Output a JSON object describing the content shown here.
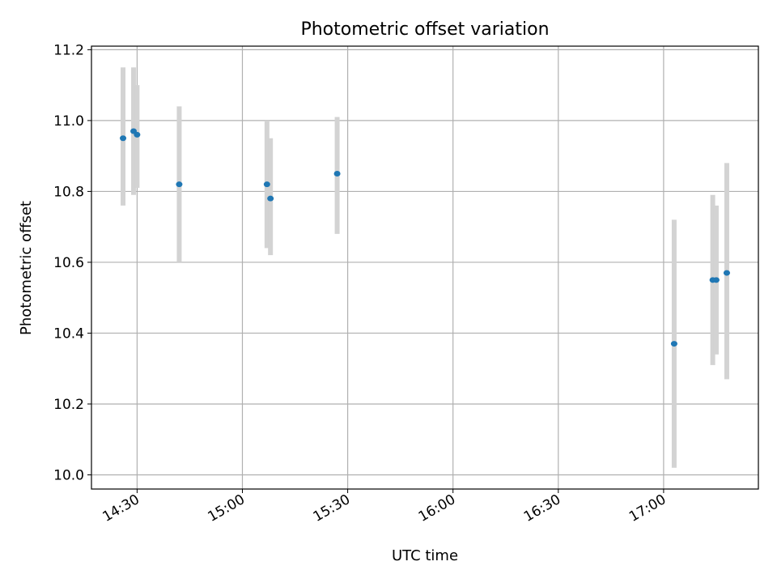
{
  "chart_data": {
    "type": "scatter",
    "title": "Photometric offset variation",
    "xlabel": "UTC time",
    "ylabel": "Photometric offset",
    "x_ticks": [
      "14:30",
      "15:00",
      "15:30",
      "16:00",
      "16:30",
      "17:00"
    ],
    "x_tick_values_min": [
      870,
      900,
      930,
      960,
      990,
      1020
    ],
    "xlim_min": [
      857,
      1047
    ],
    "y_ticks": [
      "10.0",
      "10.2",
      "10.4",
      "10.6",
      "10.8",
      "11.0",
      "11.2"
    ],
    "y_tick_values": [
      10.0,
      10.2,
      10.4,
      10.6,
      10.8,
      11.0,
      11.2
    ],
    "ylim": [
      9.96,
      11.21
    ],
    "grid": true,
    "series": [
      {
        "points": [
          {
            "time": "14:26",
            "y": 10.95,
            "err_low": 10.76,
            "err_high": 11.15
          },
          {
            "time": "14:29",
            "y": 10.97,
            "err_low": 10.79,
            "err_high": 11.15
          },
          {
            "time": "14:30",
            "y": 10.96,
            "err_low": 10.81,
            "err_high": 11.1
          },
          {
            "time": "14:42",
            "y": 10.82,
            "err_low": 10.6,
            "err_high": 11.04
          },
          {
            "time": "15:07",
            "y": 10.82,
            "err_low": 10.64,
            "err_high": 11.0
          },
          {
            "time": "15:08",
            "y": 10.78,
            "err_low": 10.62,
            "err_high": 10.95
          },
          {
            "time": "15:27",
            "y": 10.85,
            "err_low": 10.68,
            "err_high": 11.01
          },
          {
            "time": "17:03",
            "y": 10.37,
            "err_low": 10.02,
            "err_high": 10.72
          },
          {
            "time": "17:14",
            "y": 10.55,
            "err_low": 10.31,
            "err_high": 10.79
          },
          {
            "time": "17:15",
            "y": 10.55,
            "err_low": 10.34,
            "err_high": 10.76
          },
          {
            "time": "17:18",
            "y": 10.57,
            "err_low": 10.27,
            "err_high": 10.88
          }
        ]
      }
    ],
    "colors": {
      "marker": "#1f77b4",
      "errorbar": "#d3d3d3",
      "grid": "#b0b0b0",
      "axis": "#000000"
    }
  }
}
